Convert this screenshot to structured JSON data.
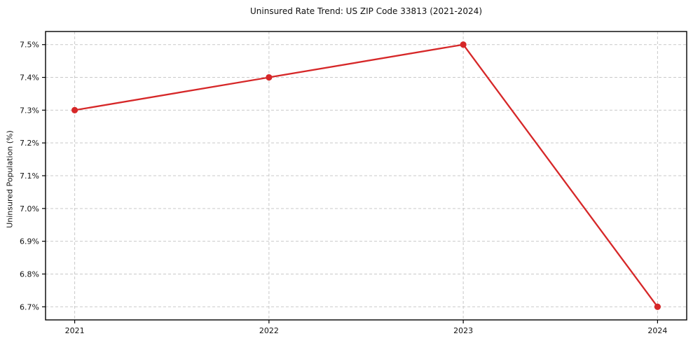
{
  "chart_data": {
    "type": "line",
    "title": "Uninsured Rate Trend: US ZIP Code 33813 (2021-2024)",
    "xlabel": "",
    "ylabel": "Uninsured Population (%)",
    "x": [
      2021,
      2022,
      2023,
      2024
    ],
    "values": [
      7.3,
      7.4,
      7.5,
      6.7
    ],
    "xtick_labels": [
      "2021",
      "2022",
      "2023",
      "2024"
    ],
    "yticks": [
      6.7,
      6.8,
      6.9,
      7.0,
      7.1,
      7.2,
      7.3,
      7.4,
      7.5
    ],
    "ytick_labels": [
      "6.7%",
      "6.8%",
      "6.9%",
      "7.0%",
      "7.1%",
      "7.2%",
      "7.3%",
      "7.4%",
      "7.5%"
    ],
    "xlim": [
      2020.85,
      2024.15
    ],
    "ylim": [
      6.66,
      7.54
    ],
    "grid": true,
    "legend": "none",
    "line_color": "#d62728",
    "marker_color": "#d62728",
    "grid_color": "#c9c9c9",
    "frame_color": "#000000",
    "text_color": "#111111"
  }
}
